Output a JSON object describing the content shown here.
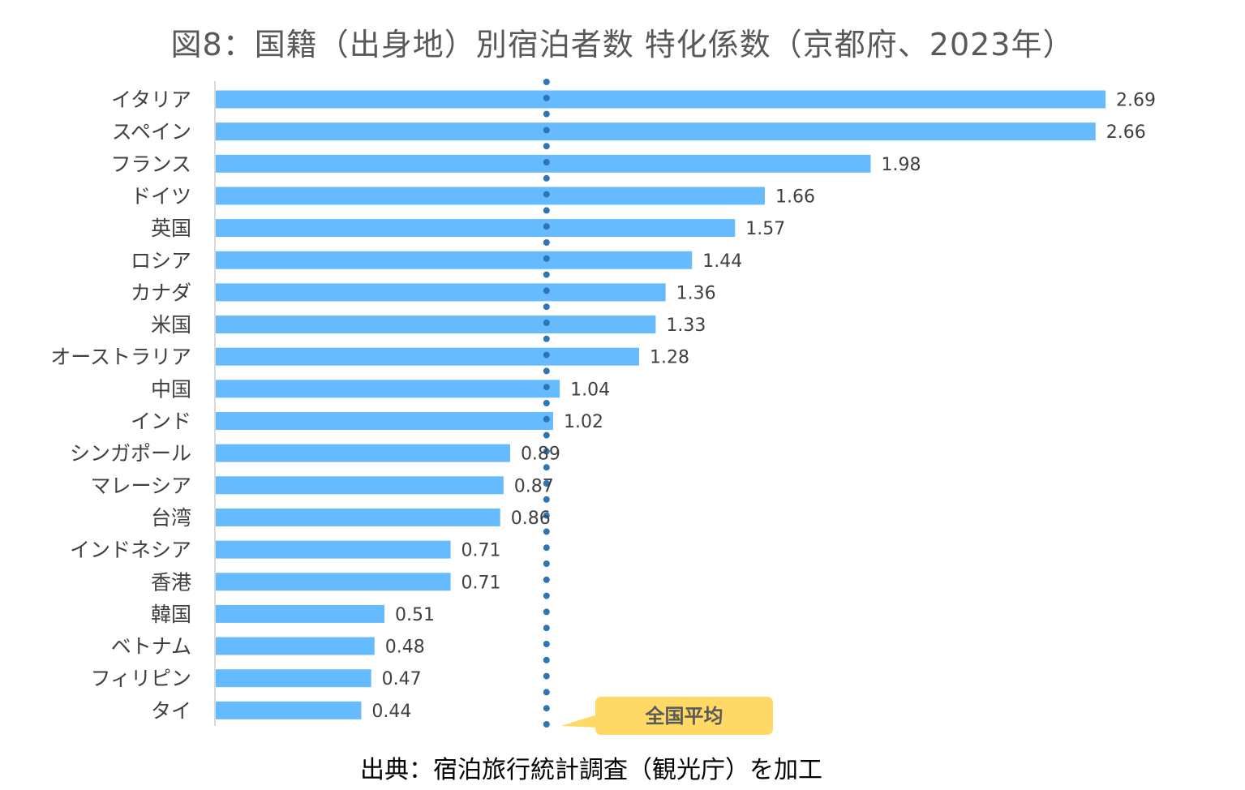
{
  "title": "図8：国籍（出身地）別宿泊者数  特化係数（京都府、2023年）",
  "source": "出典：宿泊旅行統計調査（観光庁）を加工",
  "colors": {
    "bar": "#66BBFF",
    "average_line": "#2E75B6",
    "callout": "#FFD966",
    "axis": "#D9D9D9"
  },
  "chart_data": {
    "type": "bar",
    "orientation": "horizontal",
    "categories": [
      "イタリア",
      "スペイン",
      "フランス",
      "ドイツ",
      "英国",
      "ロシア",
      "カナダ",
      "米国",
      "オーストラリア",
      "中国",
      "インド",
      "シンガポール",
      "マレーシア",
      "台湾",
      "インドネシア",
      "香港",
      "韓国",
      "ベトナム",
      "フィリピン",
      "タイ"
    ],
    "values": [
      2.69,
      2.66,
      1.98,
      1.66,
      1.57,
      1.44,
      1.36,
      1.33,
      1.28,
      1.04,
      1.02,
      0.89,
      0.87,
      0.86,
      0.71,
      0.71,
      0.51,
      0.48,
      0.47,
      0.44
    ],
    "value_labels": [
      "2.69",
      "2.66",
      "1.98",
      "1.66",
      "1.57",
      "1.44",
      "1.36",
      "1.33",
      "1.28",
      "1.04",
      "1.02",
      "0.89",
      "0.87",
      "0.86",
      "0.71",
      "0.71",
      "0.51",
      "0.48",
      "0.47",
      "0.44"
    ],
    "xlim": [
      0,
      2.69
    ],
    "reference_line": {
      "value": 1.0,
      "style": "dotted",
      "label": "全国平均"
    },
    "grid": false,
    "legend": "none"
  }
}
